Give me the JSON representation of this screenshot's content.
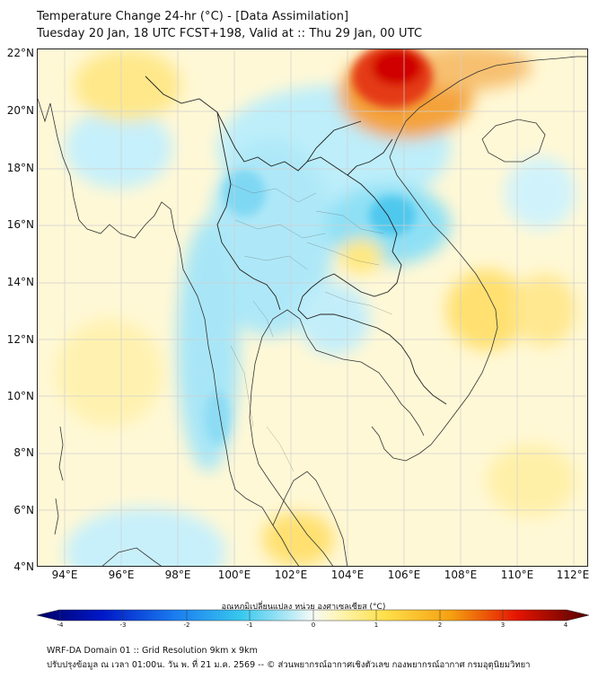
{
  "header": {
    "title_line1": "Temperature Change 24-hr (°C) - [Data Assimilation]",
    "title_line2": "Tuesday 20 Jan, 18 UTC FCST+198, Valid at :: Thu 29 Jan, 00 UTC"
  },
  "map": {
    "lat_labels": [
      "22°N",
      "20°N",
      "18°N",
      "16°N",
      "14°N",
      "12°N",
      "10°N",
      "8°N",
      "6°N",
      "4°N"
    ],
    "lon_labels": [
      "94°E",
      "96°E",
      "98°E",
      "100°E",
      "102°E",
      "104°E",
      "106°E",
      "108°E",
      "110°E",
      "112°E"
    ],
    "colors": {
      "deep_blue": "#000066",
      "cyan": "#66ddf2",
      "pale_yellow": "#fff6b8",
      "orange": "#f0a020",
      "red": "#e00000",
      "dark_red": "#550000",
      "coastline": "#333333",
      "gridline": "#d0d0d0"
    }
  },
  "colorbar": {
    "title": "อุณหภูมิเปลี่ยนแปลง หน่วย องศาเซลเซียส (°C)",
    "tick_labels": [
      "-4",
      "-3",
      "-2",
      "-1",
      "0",
      "1",
      "2",
      "3",
      "4"
    ],
    "range": [
      -4,
      4
    ]
  },
  "footer": {
    "line1": "WRF-DA Domain 01 :: Grid Resolution 9km x 9km",
    "line2": "ปรับปรุงข้อมูล ณ เวลา 01:00น. วัน พ. ที่ 21 ม.ค. 2569 -- © ส่วนพยากรณ์อากาศเชิงตัวเลข กองพยากรณ์อากาศ กรมอุตุนิยมวิทยา"
  }
}
